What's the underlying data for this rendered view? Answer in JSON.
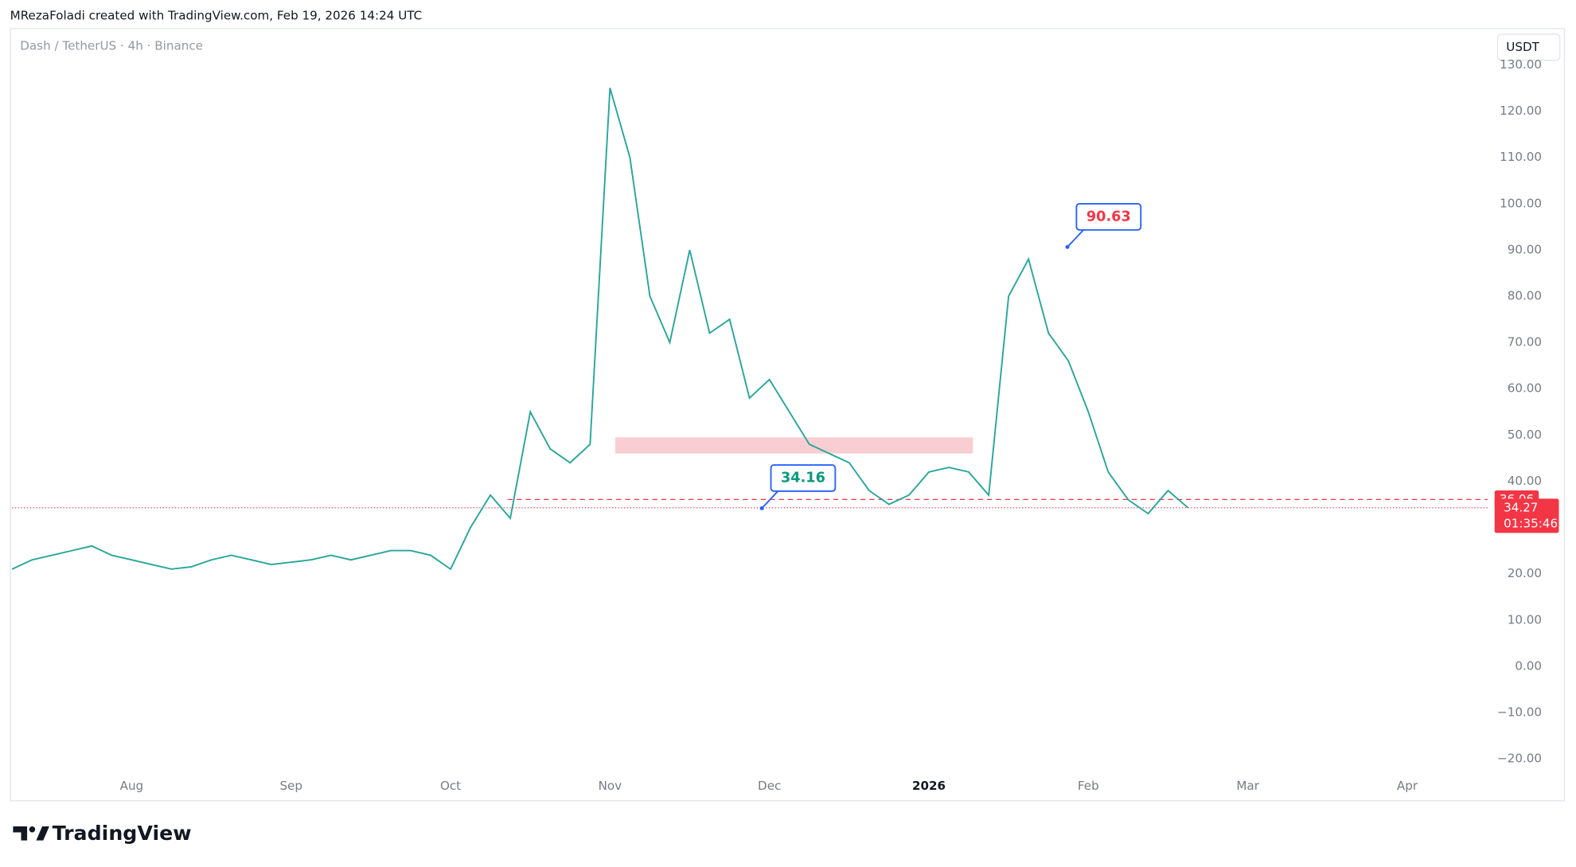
{
  "chart_data": {
    "type": "line",
    "credit": "MRezaFoladi created with TradingView.com, Feb 19, 2026 14:24 UTC",
    "title": "Dash / TetherUS · 4h · Binance",
    "currency": "USDT",
    "logo": "TradingView",
    "categories": [
      null,
      null,
      null,
      null,
      null,
      null,
      "Aug",
      null,
      null,
      null,
      null,
      null,
      null,
      null,
      "Sep",
      null,
      null,
      null,
      null,
      null,
      null,
      null,
      "Oct",
      null,
      null,
      null,
      null,
      null,
      null,
      null,
      "Nov",
      null,
      null,
      null,
      null,
      null,
      null,
      null,
      "Dec",
      null,
      null,
      null,
      null,
      null,
      null,
      null,
      "2026",
      null,
      null,
      null,
      null,
      null,
      null,
      null,
      "Feb",
      null,
      null,
      null,
      null,
      null,
      null,
      null,
      "Mar",
      null,
      null,
      null,
      null,
      null,
      null,
      null,
      "Apr",
      null,
      null,
      null
    ],
    "values": [
      21,
      23,
      24,
      25,
      26,
      24,
      23,
      22,
      21,
      21.5,
      23,
      24,
      23,
      22,
      22.5,
      23,
      24,
      23,
      24,
      25,
      25,
      24,
      21,
      30,
      37,
      32,
      55,
      47,
      44,
      48,
      125,
      110,
      80,
      70,
      90,
      72,
      75,
      58,
      62,
      55,
      48,
      46,
      44,
      38,
      35,
      37,
      42,
      43,
      42,
      37,
      80,
      88,
      72,
      66,
      55,
      42,
      36,
      33,
      38,
      34.27,
      null,
      null,
      null,
      null,
      null,
      null,
      null,
      null,
      null,
      null,
      null,
      null,
      null,
      null
    ],
    "color": "#26a69a",
    "ylim": [
      -23.3,
      137.5
    ],
    "yticks": [
      {
        "value": -20,
        "label": "−20.00"
      },
      {
        "value": -10,
        "label": "−10.00"
      },
      {
        "value": 0,
        "label": "0.00"
      },
      {
        "value": 10,
        "label": "10.00"
      },
      {
        "value": 20,
        "label": "20.00"
      },
      {
        "value": 30,
        "label": "30.00"
      },
      {
        "value": 40,
        "label": "40.00"
      },
      {
        "value": 50,
        "label": "50.00"
      },
      {
        "value": 60,
        "label": "60.00"
      },
      {
        "value": 70,
        "label": "70.00"
      },
      {
        "value": 80,
        "label": "80.00"
      },
      {
        "value": 90,
        "label": "90.00"
      },
      {
        "value": 100,
        "label": "100.00"
      },
      {
        "value": 110,
        "label": "110.00"
      },
      {
        "value": 120,
        "label": "120.00"
      },
      {
        "value": 130,
        "label": "130.00"
      }
    ],
    "zone": {
      "low": 46,
      "high": 49.5,
      "color": "#f9ced2"
    },
    "price_lines": [
      {
        "value": 36.06,
        "color": "#f23645",
        "style": "dashed"
      },
      {
        "value": 34.27,
        "color": "#f23645",
        "style": "dotted",
        "countdown": "01:35:46"
      }
    ],
    "annotations": [
      {
        "value": 34.16,
        "color": "#089981"
      },
      {
        "value": 90.63,
        "color": "#f23645"
      }
    ]
  }
}
